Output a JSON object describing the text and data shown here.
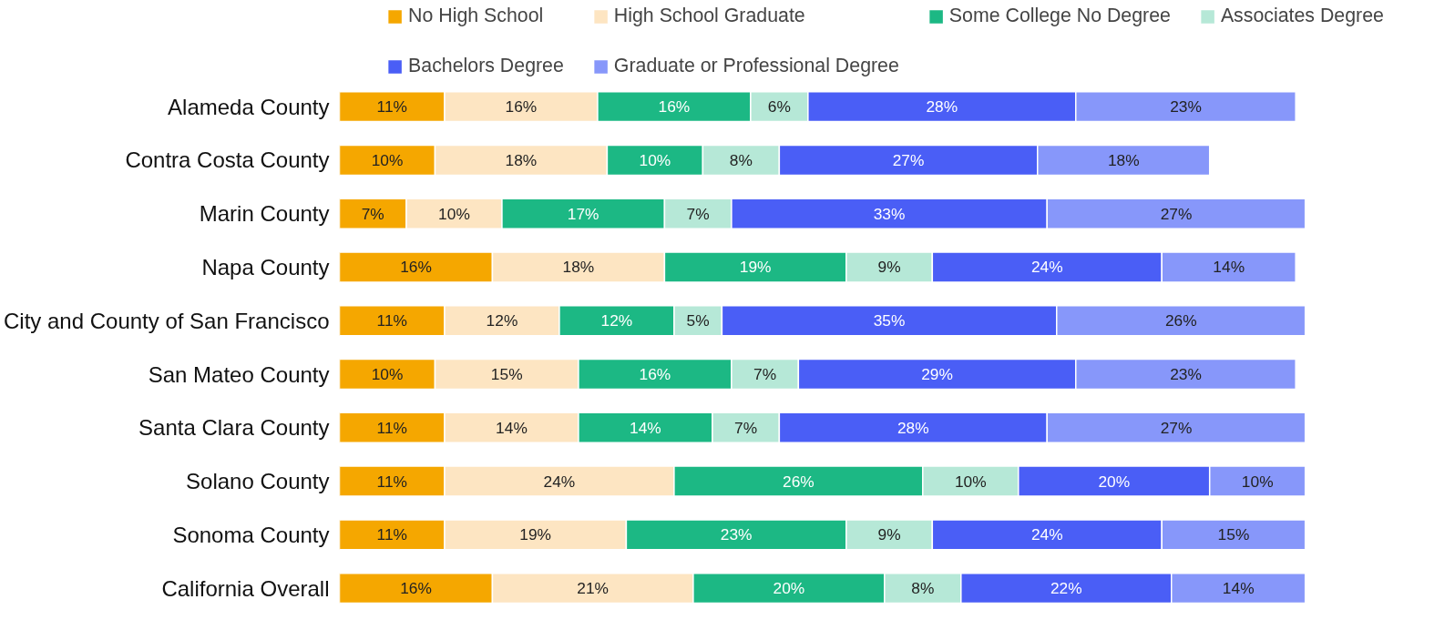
{
  "chart_data": {
    "type": "bar",
    "orientation": "horizontal",
    "stacked": true,
    "legend": "top",
    "tick_labels": "y",
    "categories": [
      "Alameda County",
      "Contra Costa County",
      "Marin County",
      "Napa County",
      "City and County of San Francisco",
      "San Mateo County",
      "Santa Clara County",
      "Solano County",
      "Sonoma County",
      "California Overall"
    ],
    "series": [
      {
        "name": "No High School",
        "color": "#f5a700",
        "values": [
          11,
          10,
          7,
          16,
          11,
          10,
          11,
          11,
          11,
          16
        ],
        "value_labels": [
          "11%",
          "10%",
          "7%",
          "16%",
          "11%",
          "10%",
          "11%",
          "11%",
          "11%",
          "16%"
        ]
      },
      {
        "name": "High School Graduate",
        "color": "#fde5c2",
        "values": [
          16,
          18,
          10,
          18,
          12,
          15,
          14,
          24,
          19,
          21
        ],
        "value_labels": [
          "16%",
          "18%",
          "10%",
          "18%",
          "12%",
          "15%",
          "14%",
          "24%",
          "19%",
          "21%"
        ]
      },
      {
        "name": "Some College No Degree",
        "color": "#1cb884",
        "values": [
          16,
          10,
          17,
          19,
          12,
          16,
          14,
          26,
          23,
          20
        ],
        "value_labels": [
          "16%",
          "10%",
          "17%",
          "19%",
          "12%",
          "16%",
          "14%",
          "26%",
          "23%",
          "20%"
        ]
      },
      {
        "name": "Associates Degree",
        "color": "#b6e8d7",
        "values": [
          6,
          8,
          7,
          9,
          5,
          7,
          7,
          10,
          9,
          8
        ],
        "value_labels": [
          "6%",
          "8%",
          "7%",
          "9%",
          "5%",
          "7%",
          "7%",
          "10%",
          "9%",
          "8%"
        ]
      },
      {
        "name": "Bachelors Degree",
        "color": "#4a5ef6",
        "values": [
          28,
          27,
          33,
          24,
          35,
          29,
          28,
          20,
          24,
          22
        ],
        "value_labels": [
          "28%",
          "27%",
          "33%",
          "24%",
          "35%",
          "29%",
          "28%",
          "20%",
          "24%",
          "22%"
        ]
      },
      {
        "name": "Graduate or Professional Degree",
        "color": "#8797fa",
        "values": [
          23,
          18,
          27,
          14,
          26,
          23,
          27,
          10,
          15,
          14
        ],
        "value_labels": [
          "23%",
          "18%",
          "27%",
          "14%",
          "26%",
          "23%",
          "27%",
          "10%",
          "15%",
          "14%"
        ]
      }
    ]
  }
}
